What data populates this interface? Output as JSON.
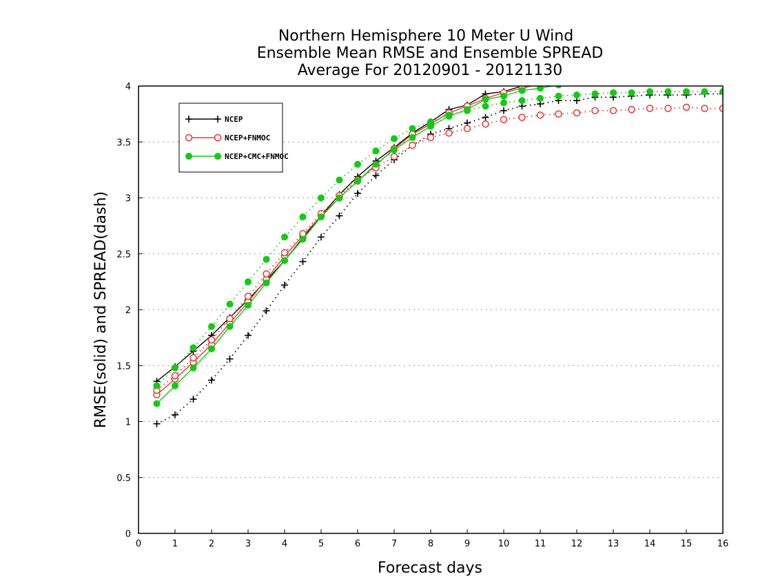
{
  "chart_data": {
    "type": "line",
    "title_lines": [
      "Northern Hemisphere 10 Meter U Wind",
      "Ensemble Mean RMSE and Ensemble SPREAD",
      "Average For 20120901 - 20121130"
    ],
    "xlabel": "Forecast days",
    "ylabel": "RMSE(solid) and SPREAD(dash)",
    "xlim": [
      0,
      16
    ],
    "ylim": [
      0,
      4
    ],
    "xticks": [
      "0",
      "1",
      "2",
      "3",
      "4",
      "5",
      "6",
      "7",
      "8",
      "9",
      "10",
      "11",
      "12",
      "13",
      "14",
      "15",
      "16"
    ],
    "yticks": [
      "0",
      "0.5",
      "1",
      "1.5",
      "2",
      "2.5",
      "3",
      "3.5",
      "4"
    ],
    "grid": "horizontal dotted",
    "legend_position": "top-left",
    "x": [
      0.5,
      1,
      1.5,
      2,
      2.5,
      3,
      3.5,
      4,
      4.5,
      5,
      5.5,
      6,
      6.5,
      7,
      7.5,
      8,
      8.5,
      9,
      9.5,
      10,
      10.5,
      11,
      11.5,
      12,
      12.5,
      13,
      13.5,
      14,
      14.5,
      15,
      15.5,
      16
    ],
    "series": [
      {
        "name": "NCEP",
        "color": "#000000",
        "marker": "plus",
        "rmse": [
          1.36,
          1.49,
          1.63,
          1.77,
          1.93,
          2.09,
          2.26,
          2.44,
          2.64,
          2.84,
          3.03,
          3.19,
          3.33,
          3.45,
          3.58,
          3.68,
          3.79,
          3.83,
          3.93,
          3.95,
          4.0,
          4.03,
          4.05,
          4.06,
          4.07,
          4.08,
          4.09,
          4.1,
          4.1,
          4.11,
          4.11,
          4.12
        ],
        "spread": [
          0.98,
          1.06,
          1.2,
          1.37,
          1.56,
          1.77,
          1.99,
          2.22,
          2.43,
          2.65,
          2.84,
          3.04,
          3.2,
          3.34,
          3.47,
          3.57,
          3.62,
          3.67,
          3.72,
          3.78,
          3.82,
          3.84,
          3.87,
          3.87,
          3.9,
          3.9,
          3.91,
          3.92,
          3.92,
          3.92,
          3.93,
          3.93
        ]
      },
      {
        "name": "NCEP+FNMOC",
        "color": "#ee3333",
        "marker": "open-circle",
        "rmse": [
          1.24,
          1.38,
          1.53,
          1.69,
          1.88,
          2.07,
          2.27,
          2.48,
          2.66,
          2.84,
          3.0,
          3.15,
          3.29,
          3.44,
          3.57,
          3.66,
          3.76,
          3.82,
          3.89,
          3.94,
          3.98,
          4.02,
          4.04,
          4.06,
          4.07,
          4.08,
          4.09,
          4.1,
          4.1,
          4.1,
          4.1,
          4.11
        ],
        "spread": [
          1.28,
          1.41,
          1.57,
          1.73,
          1.92,
          2.12,
          2.32,
          2.51,
          2.68,
          2.86,
          3.02,
          3.16,
          3.27,
          3.37,
          3.47,
          3.54,
          3.58,
          3.62,
          3.66,
          3.7,
          3.72,
          3.74,
          3.75,
          3.76,
          3.78,
          3.78,
          3.79,
          3.8,
          3.8,
          3.81,
          3.8,
          3.8
        ]
      },
      {
        "name": "NCEP+CMC+FNMOC",
        "color": "#11cc11",
        "marker": "filled-circle",
        "rmse": [
          1.16,
          1.32,
          1.48,
          1.65,
          1.85,
          2.04,
          2.24,
          2.44,
          2.63,
          2.83,
          3.0,
          3.15,
          3.3,
          3.43,
          3.54,
          3.64,
          3.73,
          3.79,
          3.88,
          3.91,
          3.96,
          3.98,
          4.01,
          4.03,
          4.05,
          4.06,
          4.07,
          4.08,
          4.08,
          4.09,
          4.09,
          4.1
        ],
        "spread": [
          1.32,
          1.48,
          1.66,
          1.85,
          2.05,
          2.25,
          2.45,
          2.65,
          2.83,
          3.0,
          3.16,
          3.3,
          3.42,
          3.53,
          3.62,
          3.68,
          3.74,
          3.78,
          3.82,
          3.85,
          3.87,
          3.89,
          3.91,
          3.92,
          3.93,
          3.94,
          3.94,
          3.95,
          3.95,
          3.95,
          3.95,
          3.95
        ]
      }
    ]
  }
}
